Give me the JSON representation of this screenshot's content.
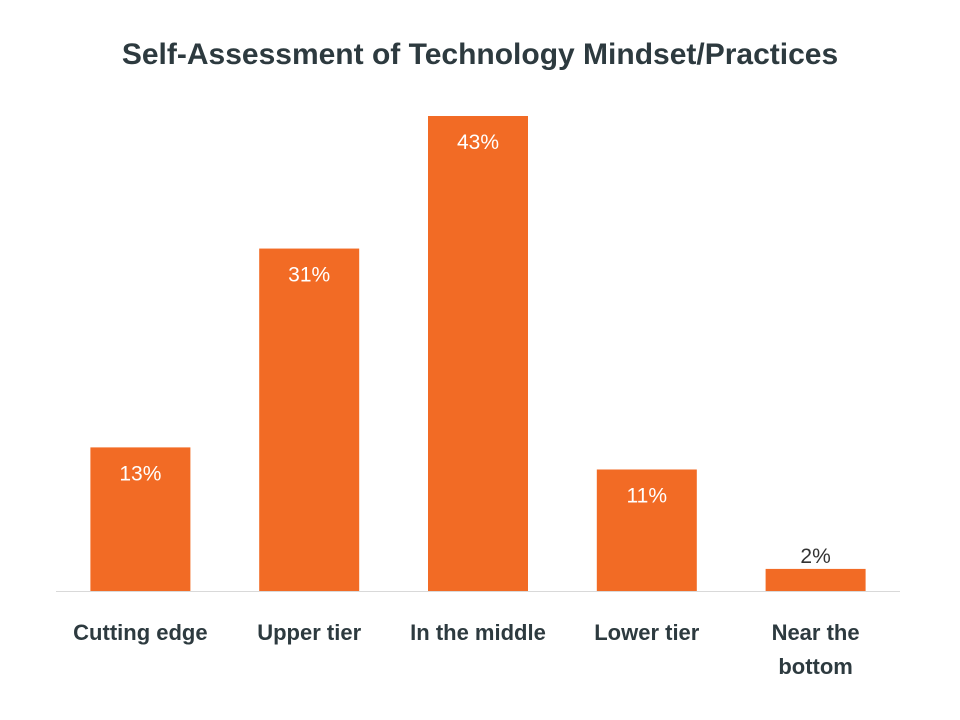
{
  "chart_data": {
    "type": "bar",
    "title": "Self-Assessment of Technology Mindset/Practices",
    "categories": [
      "Cutting edge",
      "Upper tier",
      "In the middle",
      "Lower tier",
      "Near the bottom"
    ],
    "category_lines": [
      [
        "Cutting edge"
      ],
      [
        "Upper tier"
      ],
      [
        "In the middle"
      ],
      [
        "Lower tier"
      ],
      [
        "Near the",
        "bottom"
      ]
    ],
    "values": [
      13,
      31,
      43,
      11,
      2
    ],
    "value_labels": [
      "13%",
      "31%",
      "43%",
      "11%",
      "2%"
    ],
    "value_suffix": "%",
    "xlabel": "",
    "ylabel": "",
    "ylim": [
      0,
      43
    ],
    "grid": false,
    "legend": "none",
    "colors": {
      "bar": "#f26b25",
      "label_inside": "#ffffff",
      "label_outside": "#333333",
      "title": "#2d3a3f",
      "category_text": "#2d3a3f",
      "axis_line": "#d9d9d9"
    }
  }
}
